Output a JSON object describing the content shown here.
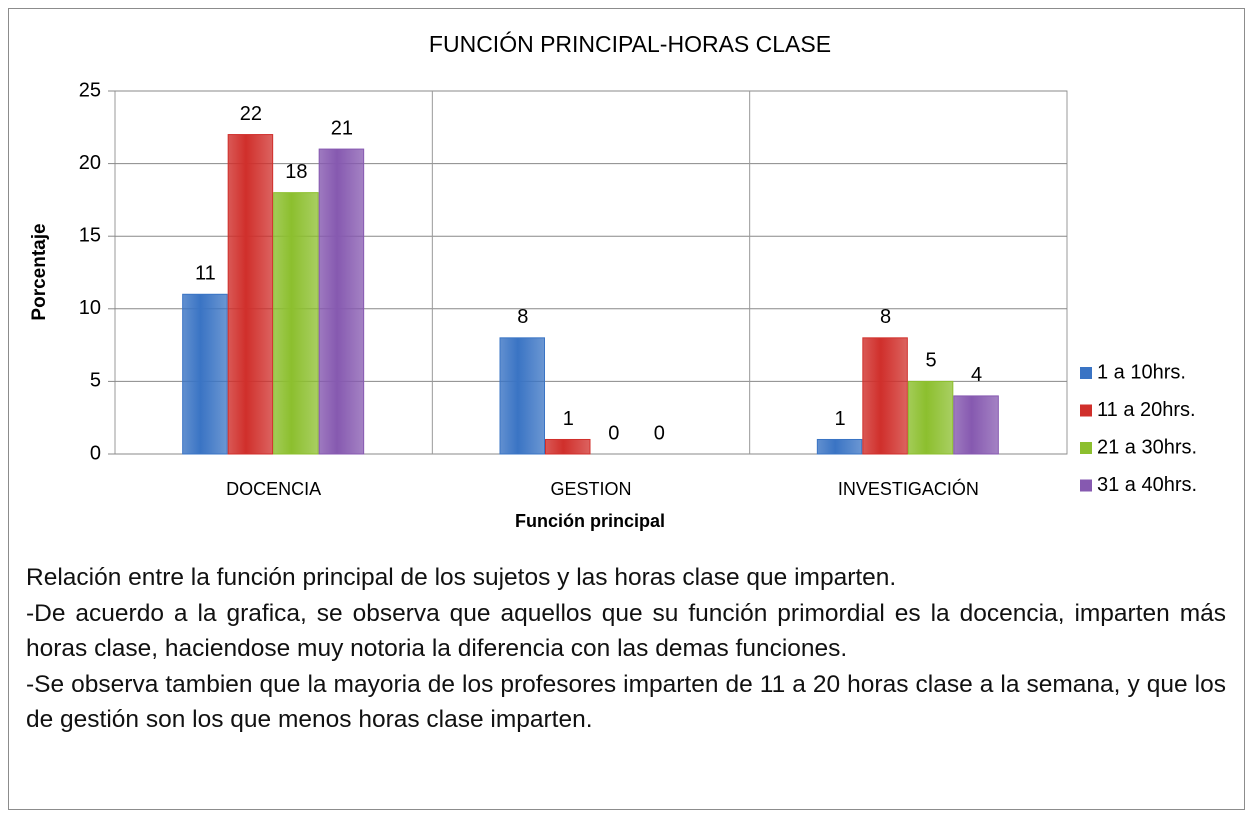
{
  "chart_data": {
    "type": "bar",
    "title": "FUNCIÓN PRINCIPAL-HORAS CLASE",
    "x_label": "Función principal",
    "y_label": "Porcentaje",
    "categories": [
      "DOCENCIA",
      "GESTION",
      "INVESTIGACIÓN"
    ],
    "series": [
      {
        "name": "1 a 10hrs.",
        "color": "#3a74c4",
        "values": [
          11,
          8,
          1
        ]
      },
      {
        "name": "11 a 20hrs.",
        "color": "#d02f2b",
        "values": [
          22,
          1,
          8
        ]
      },
      {
        "name": "21 a 30hrs.",
        "color": "#8cbf2e",
        "values": [
          18,
          0,
          5
        ]
      },
      {
        "name": "31 a 40hrs.",
        "color": "#8659b0",
        "values": [
          21,
          0,
          4
        ]
      }
    ],
    "ylim": [
      0,
      25
    ],
    "yticks": [
      0,
      5,
      10,
      15,
      20,
      25
    ],
    "grid": true,
    "legend": "right"
  },
  "description": [
    "Relación entre la función principal de los sujetos y las horas clase que imparten.",
    "-De acuerdo a la grafica, se observa que aquellos que su función primordial es la docencia, imparten más horas clase, haciendose muy notoria la diferencia con las demas funciones.",
    "-Se observa tambien que la mayoria de los profesores imparten de 11 a 20 horas clase a la semana, y que los de gestión son los que menos horas clase imparten."
  ]
}
